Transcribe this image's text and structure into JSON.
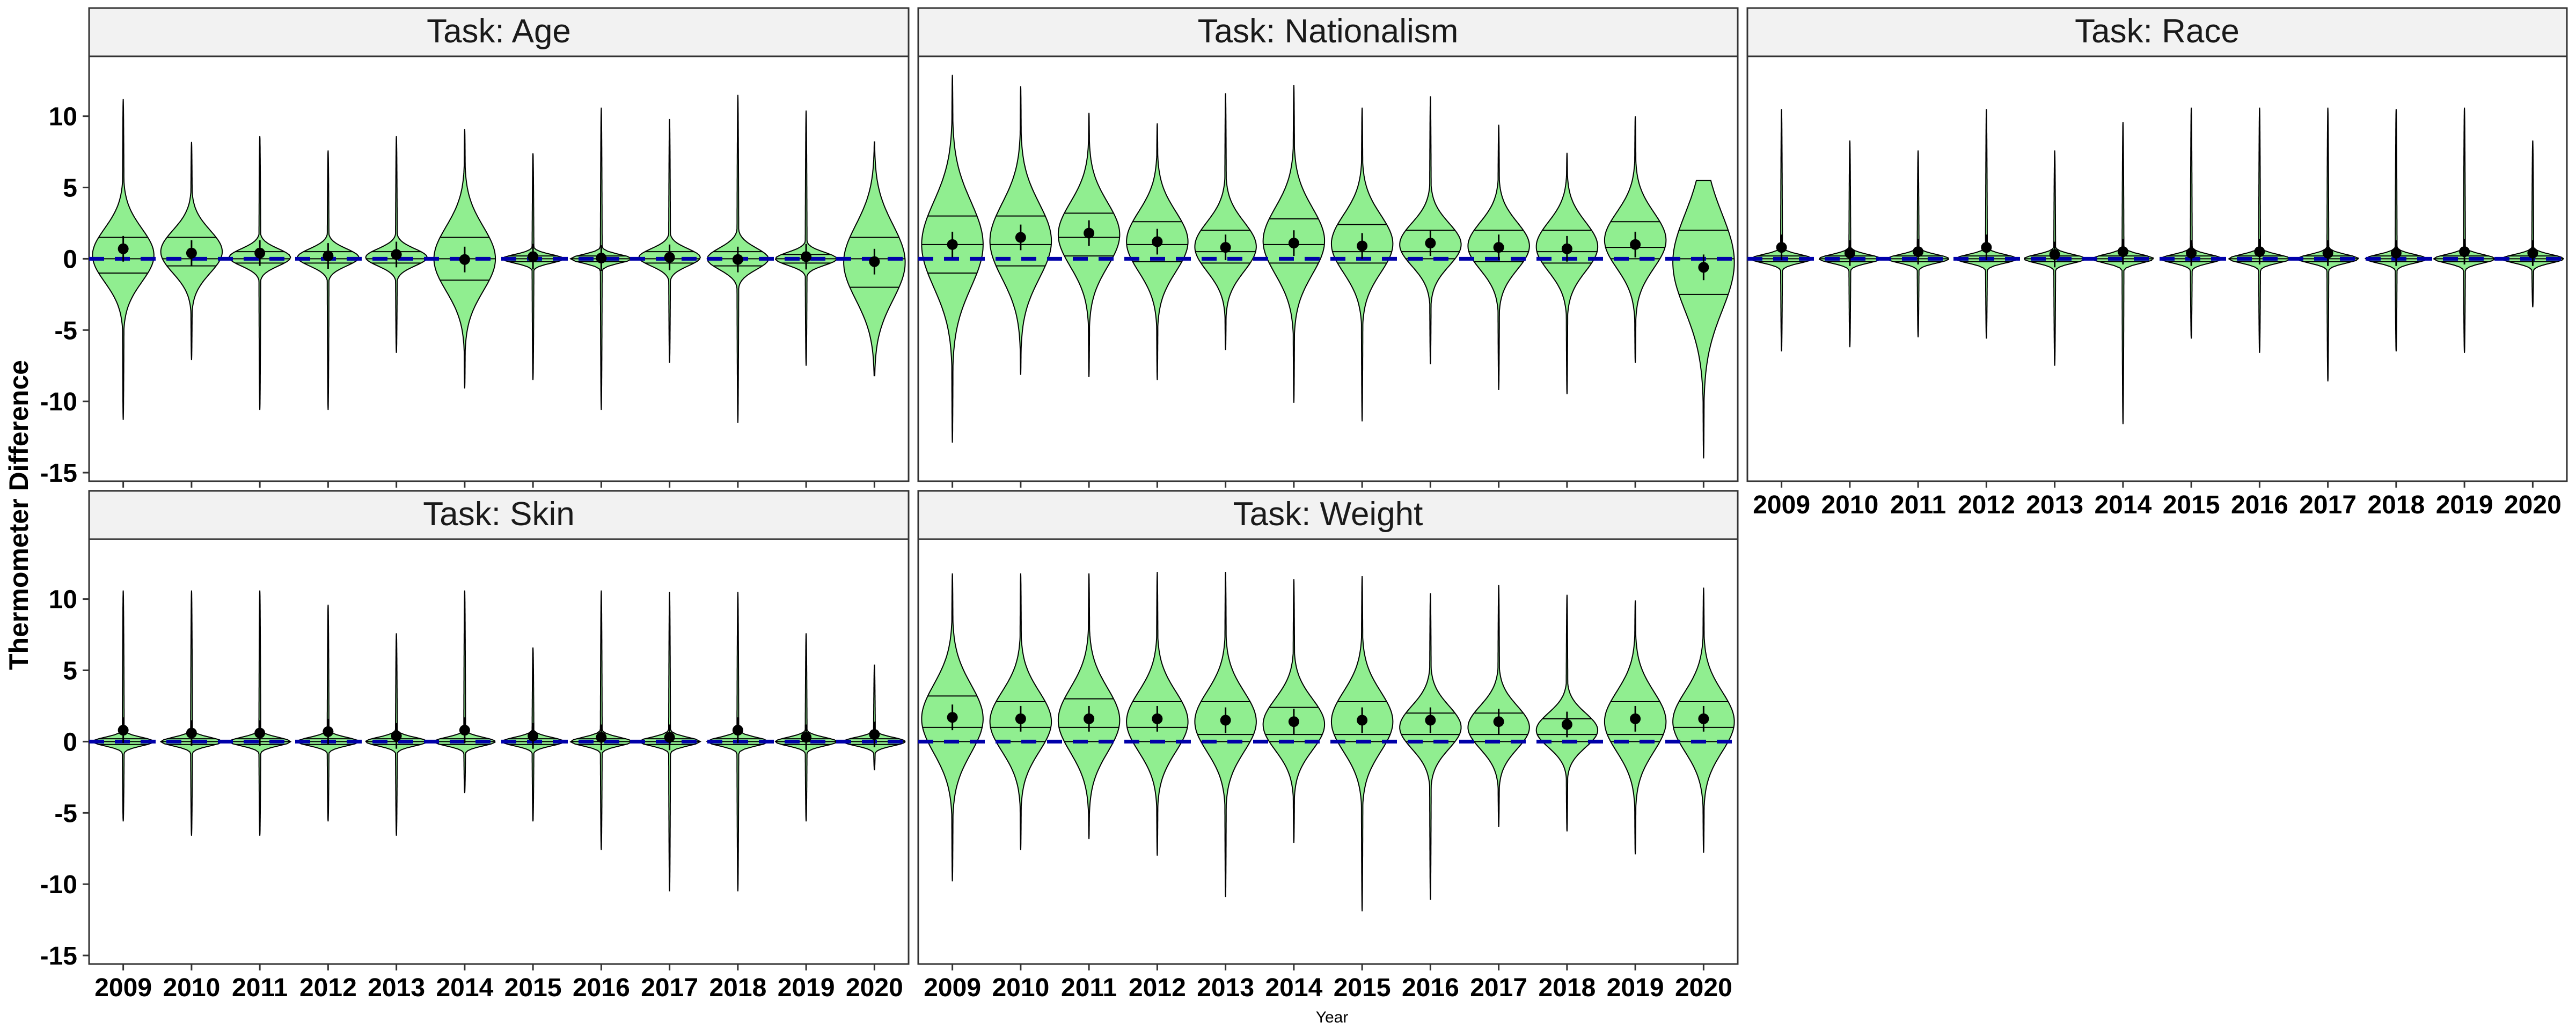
{
  "chart_data": {
    "type": "violin",
    "ylabel": "Thermometer Difference",
    "xlabel": "Year",
    "ylim": [
      -15,
      15
    ],
    "yticks": [
      -15,
      -10,
      -5,
      0,
      5,
      10
    ],
    "categories": [
      "2009",
      "2010",
      "2011",
      "2012",
      "2013",
      "2014",
      "2015",
      "2016",
      "2017",
      "2018",
      "2019",
      "2020"
    ],
    "reference_line": {
      "y": 0,
      "style": "dashed",
      "color": "#0000aa"
    },
    "colors": {
      "violin_fill": "#90ee90",
      "outline": "#000000",
      "strip_bg": "#f2f2f2"
    },
    "panels": [
      {
        "title": "Task: Age",
        "means": [
          0.7,
          0.4,
          0.4,
          0.2,
          0.3,
          -0.05,
          0.15,
          0.05,
          0.1,
          -0.05,
          0.15,
          -0.2
        ],
        "ranges": [
          [
            -11.3,
            11.2
          ],
          [
            -7.1,
            8.2
          ],
          [
            -10.6,
            8.6
          ],
          [
            -10.6,
            7.6
          ],
          [
            -6.6,
            8.6
          ],
          [
            -9.1,
            9.1
          ],
          [
            -8.5,
            7.4
          ],
          [
            -10.6,
            10.6
          ],
          [
            -7.3,
            9.8
          ],
          [
            -11.5,
            11.5
          ],
          [
            -7.5,
            10.4
          ],
          [
            -8.2,
            8.2
          ]
        ],
        "quartiles": [
          [
            -1.0,
            0.0,
            1.5
          ],
          [
            -0.5,
            0.0,
            1.5
          ],
          [
            -0.3,
            0.0,
            0.5
          ],
          [
            -0.3,
            0.0,
            0.5
          ],
          [
            -0.3,
            0.0,
            0.5
          ],
          [
            -1.5,
            0.0,
            1.5
          ],
          [
            -0.2,
            0.0,
            0.2
          ],
          [
            -0.2,
            0.0,
            0.2
          ],
          [
            -0.3,
            0.0,
            0.5
          ],
          [
            -0.5,
            0.0,
            0.5
          ],
          [
            -0.3,
            0.0,
            0.3
          ],
          [
            -2.0,
            0.0,
            1.5
          ]
        ]
      },
      {
        "title": "Task: Nationalism",
        "means": [
          1.0,
          1.5,
          1.8,
          1.2,
          0.8,
          1.1,
          0.9,
          1.1,
          0.8,
          0.7,
          1.0,
          -0.6
        ],
        "ranges": [
          [
            -12.9,
            12.9
          ],
          [
            -8.1,
            12.1
          ],
          [
            -8.3,
            10.2
          ],
          [
            -8.5,
            9.5
          ],
          [
            -6.4,
            11.6
          ],
          [
            -10.1,
            12.2
          ],
          [
            -11.4,
            10.6
          ],
          [
            -7.4,
            11.4
          ],
          [
            -9.2,
            9.4
          ],
          [
            -9.5,
            7.4
          ],
          [
            -7.3,
            10.0
          ],
          [
            -14.0,
            5.5
          ]
        ],
        "quartiles": [
          [
            -1.0,
            1.0,
            3.0
          ],
          [
            -0.5,
            1.0,
            3.0
          ],
          [
            0.2,
            1.5,
            3.2
          ],
          [
            -0.2,
            1.0,
            2.6
          ],
          [
            -0.3,
            0.5,
            2.0
          ],
          [
            -0.3,
            1.0,
            2.8
          ],
          [
            -0.3,
            0.5,
            2.4
          ],
          [
            0.0,
            0.5,
            2.0
          ],
          [
            -0.2,
            0.5,
            2.0
          ],
          [
            -0.3,
            0.5,
            2.0
          ],
          [
            0.0,
            0.8,
            2.6
          ],
          [
            -2.5,
            0.0,
            2.0
          ]
        ]
      },
      {
        "title": "Task: Race",
        "means": [
          0.8,
          0.4,
          0.5,
          0.8,
          0.3,
          0.5,
          0.4,
          0.5,
          0.4,
          0.4,
          0.5,
          0.4
        ],
        "ranges": [
          [
            -6.5,
            10.5
          ],
          [
            -6.2,
            8.3
          ],
          [
            -5.5,
            7.6
          ],
          [
            -5.6,
            10.5
          ],
          [
            -7.5,
            7.6
          ],
          [
            -11.6,
            9.6
          ],
          [
            -5.6,
            10.6
          ],
          [
            -6.6,
            10.6
          ],
          [
            -8.6,
            10.6
          ],
          [
            -6.5,
            10.5
          ],
          [
            -6.6,
            10.6
          ],
          [
            -3.4,
            8.3
          ]
        ],
        "quartiles": [
          [
            -0.2,
            0.0,
            0.2
          ],
          [
            -0.2,
            0.0,
            0.2
          ],
          [
            -0.2,
            0.0,
            0.2
          ],
          [
            -0.2,
            0.0,
            0.2
          ],
          [
            -0.2,
            0.0,
            0.2
          ],
          [
            -0.2,
            0.0,
            0.2
          ],
          [
            -0.2,
            0.0,
            0.2
          ],
          [
            -0.2,
            0.0,
            0.2
          ],
          [
            -0.2,
            0.0,
            0.2
          ],
          [
            -0.2,
            0.0,
            0.2
          ],
          [
            -0.2,
            0.0,
            0.2
          ],
          [
            -0.2,
            0.0,
            0.2
          ]
        ]
      },
      {
        "title": "Task: Skin",
        "means": [
          0.8,
          0.6,
          0.6,
          0.7,
          0.4,
          0.8,
          0.4,
          0.3,
          0.3,
          0.8,
          0.3,
          0.5
        ],
        "ranges": [
          [
            -5.6,
            10.6
          ],
          [
            -6.6,
            10.6
          ],
          [
            -6.6,
            10.6
          ],
          [
            -5.6,
            9.6
          ],
          [
            -6.6,
            7.6
          ],
          [
            -3.6,
            10.6
          ],
          [
            -5.6,
            6.6
          ],
          [
            -7.6,
            10.6
          ],
          [
            -10.5,
            10.5
          ],
          [
            -10.5,
            10.5
          ],
          [
            -5.6,
            7.6
          ],
          [
            -2.0,
            5.4
          ]
        ],
        "quartiles": [
          [
            -0.2,
            0.0,
            0.2
          ],
          [
            -0.2,
            0.0,
            0.2
          ],
          [
            -0.2,
            0.0,
            0.2
          ],
          [
            -0.2,
            0.0,
            0.2
          ],
          [
            -0.2,
            0.0,
            0.2
          ],
          [
            -0.2,
            0.0,
            0.2
          ],
          [
            -0.2,
            0.0,
            0.2
          ],
          [
            -0.2,
            0.0,
            0.2
          ],
          [
            -0.2,
            0.0,
            0.2
          ],
          [
            -0.2,
            0.0,
            0.2
          ],
          [
            -0.2,
            0.0,
            0.2
          ],
          [
            -0.2,
            0.0,
            0.2
          ]
        ]
      },
      {
        "title": "Task: Weight",
        "means": [
          1.7,
          1.6,
          1.6,
          1.6,
          1.5,
          1.4,
          1.5,
          1.5,
          1.4,
          1.2,
          1.6,
          1.6
        ],
        "ranges": [
          [
            -9.8,
            11.8
          ],
          [
            -7.6,
            11.8
          ],
          [
            -6.8,
            11.8
          ],
          [
            -8.0,
            11.9
          ],
          [
            -10.9,
            11.9
          ],
          [
            -7.1,
            11.4
          ],
          [
            -11.9,
            11.6
          ],
          [
            -11.1,
            10.4
          ],
          [
            -6.0,
            11.0
          ],
          [
            -6.3,
            10.3
          ],
          [
            -7.9,
            9.9
          ],
          [
            -7.8,
            10.8
          ]
        ],
        "quartiles": [
          [
            0.0,
            1.0,
            3.2
          ],
          [
            0.0,
            1.0,
            2.8
          ],
          [
            0.0,
            1.0,
            3.0
          ],
          [
            0.0,
            1.0,
            2.8
          ],
          [
            0.0,
            0.5,
            2.8
          ],
          [
            0.0,
            0.5,
            2.4
          ],
          [
            0.0,
            0.5,
            2.8
          ],
          [
            0.0,
            0.5,
            2.0
          ],
          [
            0.0,
            0.5,
            2.0
          ],
          [
            0.0,
            0.5,
            1.6
          ],
          [
            0.0,
            0.5,
            2.8
          ],
          [
            0.0,
            1.0,
            2.8
          ]
        ]
      }
    ]
  }
}
